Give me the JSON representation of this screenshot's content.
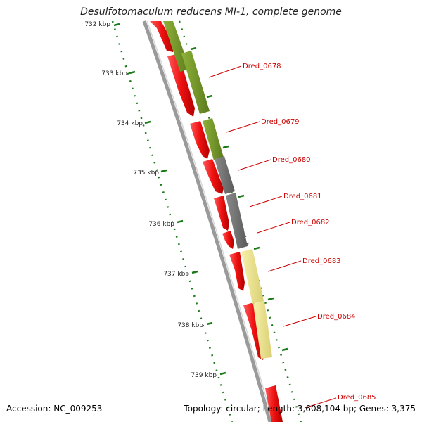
{
  "title": "Desulfotomaculum reducens MI-1, complete genome",
  "footer": {
    "accession_label": "Accession:",
    "accession": "NC_009253",
    "topology_label": "Topology:",
    "topology": "circular",
    "length_label": "Length:",
    "length": "3,608,104 bp",
    "genes_label": "Genes:",
    "genes": "3,375"
  },
  "ticks": [
    {
      "label": "732 kbp"
    },
    {
      "label": "733 kbp"
    },
    {
      "label": "734 kbp"
    },
    {
      "label": "735 kbp"
    },
    {
      "label": "736 kbp"
    },
    {
      "label": "737 kbp"
    },
    {
      "label": "738 kbp"
    },
    {
      "label": "739 kbp"
    }
  ],
  "genes": [
    {
      "label": "Dred_0678"
    },
    {
      "label": "Dred_0679"
    },
    {
      "label": "Dred_0680"
    },
    {
      "label": "Dred_0681"
    },
    {
      "label": "Dred_0682"
    },
    {
      "label": "Dred_0683"
    },
    {
      "label": "Dred_0684"
    },
    {
      "label": "Dred_0685"
    }
  ],
  "colors": {
    "forward_cds": "#ee1111",
    "backbone": "#888888",
    "tick": "#1a7a1a",
    "label": "#cc0000",
    "cog_green": "#6b8e23",
    "cog_gray": "#6e6e6e",
    "cog_yellow": "#f0e68c"
  }
}
